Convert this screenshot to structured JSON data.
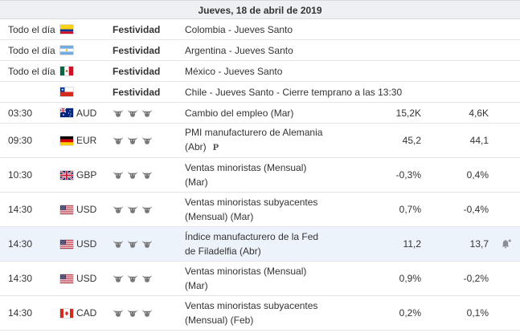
{
  "header": {
    "date": "Jueves, 18 de abril de 2019"
  },
  "rows": [
    {
      "time": "Todo el día",
      "flag": "colombia-flag",
      "currency": "",
      "importance": "Festividad",
      "event": "Colombia - Jueves Santo",
      "event2": "",
      "actual": "",
      "forecast": ""
    },
    {
      "time": "Todo el día",
      "flag": "argentina-flag",
      "currency": "",
      "importance": "Festividad",
      "event": "Argentina - Jueves Santo",
      "event2": "",
      "actual": "",
      "forecast": ""
    },
    {
      "time": "Todo el día",
      "flag": "mexico-flag",
      "currency": "",
      "importance": "Festividad",
      "event": "México - Jueves Santo",
      "event2": "",
      "actual": "",
      "forecast": ""
    },
    {
      "time": "",
      "flag": "chile-flag",
      "currency": "",
      "importance": "Festividad",
      "event": "Chile - Jueves Santo - Cierre temprano a las 13:30",
      "event2": "",
      "actual": "",
      "forecast": ""
    },
    {
      "time": "03:30",
      "flag": "australia-flag",
      "currency": "AUD",
      "importance": "3-bulls",
      "event": "Cambio del empleo (Mar)",
      "event2": "",
      "actual": "15,2K",
      "forecast": "4,6K"
    },
    {
      "time": "09:30",
      "flag": "germany-flag",
      "currency": "EUR",
      "importance": "3-bulls",
      "event": "PMI manufacturero de Alemania",
      "event2": "(Abr)",
      "preliminary": "P",
      "actual": "45,2",
      "forecast": "44,1"
    },
    {
      "time": "10:30",
      "flag": "uk-flag",
      "currency": "GBP",
      "importance": "3-bulls",
      "event": "Ventas minoristas (Mensual)",
      "event2": "(Mar)",
      "actual": "-0,3%",
      "forecast": "0,4%"
    },
    {
      "time": "14:30",
      "flag": "usa-flag",
      "currency": "USD",
      "importance": "3-bulls",
      "event": "Ventas minoristas subyacentes",
      "event2": "(Mensual) (Mar)",
      "actual": "0,7%",
      "forecast": "-0,4%"
    },
    {
      "time": "14:30",
      "flag": "usa-flag",
      "currency": "USD",
      "importance": "3-bulls",
      "event": "Índice manufacturero de la Fed",
      "event2": "de Filadelfia (Abr)",
      "actual": "11,2",
      "forecast": "13,7",
      "alert": "bell-plus-icon"
    },
    {
      "time": "14:30",
      "flag": "usa-flag",
      "currency": "USD",
      "importance": "3-bulls",
      "event": "Ventas minoristas (Mensual)",
      "event2": "(Mar)",
      "actual": "0,9%",
      "forecast": "-0,2%"
    },
    {
      "time": "14:30",
      "flag": "canada-flag",
      "currency": "CAD",
      "importance": "3-bulls",
      "event": "Ventas minoristas subyacentes",
      "event2": "(Mensual) (Feb)",
      "actual": "0,2%",
      "forecast": "0,1%"
    }
  ],
  "colors": {
    "header_bg": "#eef0f3",
    "highlight_row": "#edf3fb",
    "bull": "#777777",
    "border": "#e2e4e7"
  }
}
